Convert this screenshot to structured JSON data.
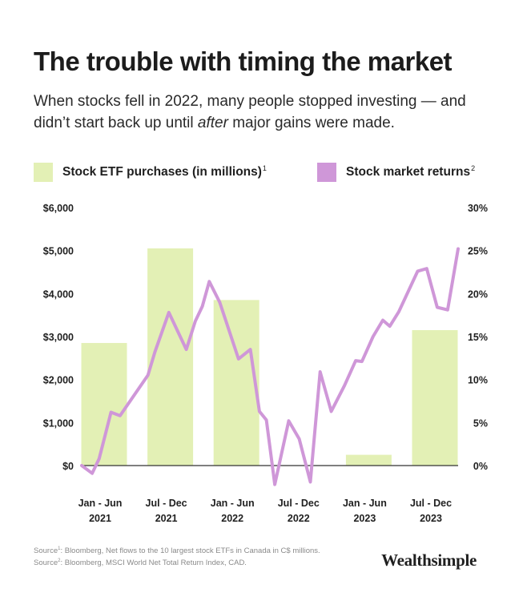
{
  "header": {
    "title": "The trouble with timing the market",
    "subtitle_before": "When stocks fell in 2022, many people stopped investing — and didn’t start back up until ",
    "subtitle_emphasis": "after",
    "subtitle_after": " major gains were made."
  },
  "legend": {
    "bars_label": "Stock ETF purchases (in millions)",
    "bars_note": "1",
    "line_label": "Stock market returns",
    "line_note": "2"
  },
  "footer": {
    "source1_prefix": "Source",
    "source1_note": "1",
    "source1_text": ": Bloomberg, Net flows to the 10 largest stock ETFs in Canada in C$ millions.",
    "source2_prefix": "Source",
    "source2_note": "2",
    "source2_text": ": Bloomberg, MSCI World Net Total Return Index, CAD.",
    "brand": "Wealthsimple"
  },
  "colors": {
    "bar": "#e3f0b5",
    "line": "#cf97d8",
    "axis": "#333333",
    "text": "#1f1f1f"
  },
  "chart_data": {
    "type": "bar+line",
    "categories": [
      [
        "Jan - Jun",
        "2021"
      ],
      [
        "Jul - Dec",
        "2021"
      ],
      [
        "Jan - Jun",
        "2022"
      ],
      [
        "Jul - Dec",
        "2022"
      ],
      [
        "Jan - Jun",
        "2023"
      ],
      [
        "Jul - Dec",
        "2023"
      ]
    ],
    "bars": {
      "name": "Stock ETF purchases (in millions)",
      "values": [
        2850,
        5050,
        3850,
        0,
        250,
        3150
      ],
      "ylim": [
        0,
        6000
      ],
      "ticks": [
        0,
        1000,
        2000,
        3000,
        4000,
        5000,
        6000
      ],
      "tick_labels": [
        "$0",
        "$1,000",
        "$2,000",
        "$3,000",
        "$4,000",
        "$5,000",
        "$6,000"
      ]
    },
    "line": {
      "name": "Stock market returns",
      "x": [
        0.0,
        0.15,
        0.25,
        0.42,
        0.55,
        0.95,
        1.05,
        1.25,
        1.5,
        1.63,
        1.73,
        1.83,
        1.98,
        2.25,
        2.42,
        2.55,
        2.65,
        2.77,
        2.97,
        3.12,
        3.28,
        3.42,
        3.58,
        3.77,
        3.93,
        4.02,
        4.18,
        4.32,
        4.42,
        4.55,
        4.82,
        4.95,
        5.1,
        5.25,
        5.4
      ],
      "y": [
        0.0,
        -0.9,
        0.8,
        6.2,
        5.8,
        10.5,
        13.2,
        17.8,
        13.5,
        16.8,
        18.5,
        21.4,
        19.0,
        12.4,
        13.5,
        6.3,
        5.3,
        -2.2,
        5.2,
        3.1,
        -1.9,
        10.9,
        6.3,
        9.3,
        12.2,
        12.1,
        15.0,
        16.9,
        16.2,
        17.9,
        22.6,
        22.9,
        18.4,
        18.1,
        25.2
      ],
      "ylim": [
        0,
        30
      ],
      "ticks": [
        0,
        5,
        10,
        15,
        20,
        25,
        30
      ],
      "tick_labels": [
        "0%",
        "5%",
        "10%",
        "15%",
        "20%",
        "25%",
        "30%"
      ]
    }
  }
}
